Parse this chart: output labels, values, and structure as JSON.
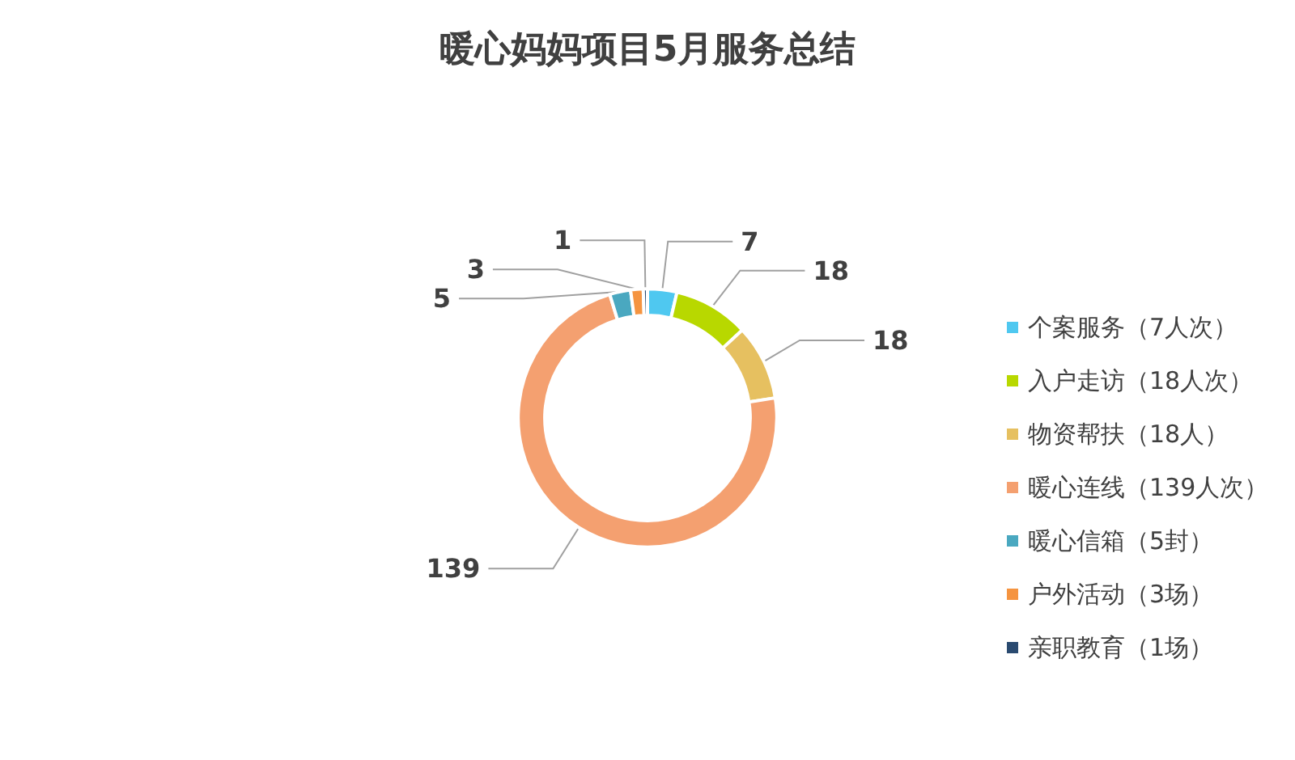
{
  "chart_data": {
    "type": "donut",
    "title": "暖心妈妈项目5月服务总结",
    "categories": [
      "个案服务（7人次）",
      "入户走访（18人次）",
      "物资帮扶（18人）",
      "暖心连线（139人次）",
      "暖心信箱（5封）",
      "户外活动（3场）",
      "亲职教育（1场）"
    ],
    "values": [
      7,
      18,
      18,
      139,
      5,
      3,
      1
    ],
    "colors": [
      "#4fc8f0",
      "#b8d800",
      "#e6c060",
      "#f4a070",
      "#4aa8c0",
      "#f59440",
      "#2a4a70"
    ],
    "data_labels": true,
    "legend": "right"
  }
}
